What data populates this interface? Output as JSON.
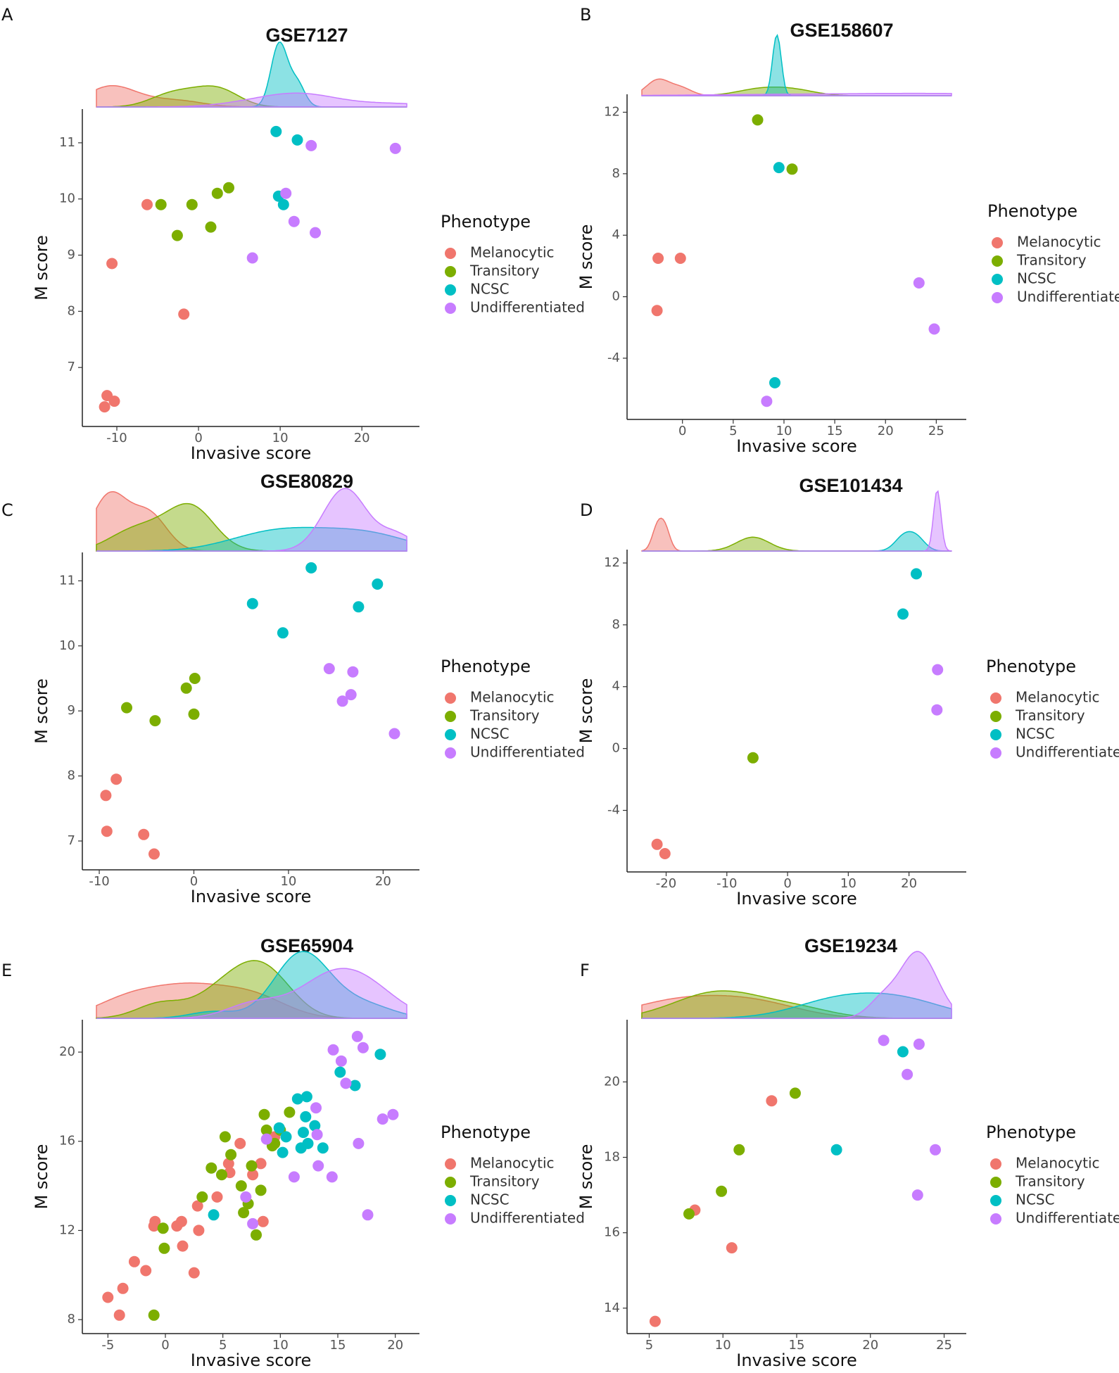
{
  "legend": {
    "title": "Phenotype",
    "items": [
      {
        "name": "Melanocytic",
        "color": "#F0766D"
      },
      {
        "name": "Transitory",
        "color": "#7CAE00"
      },
      {
        "name": "NCSC",
        "color": "#00BFC4"
      },
      {
        "name": "Undifferentiated",
        "color": "#C77CFF"
      }
    ]
  },
  "chart_data": [
    {
      "panel": "A",
      "title": "GSE7127",
      "type": "scatter",
      "xlabel": "Invasive score",
      "ylabel": "M score",
      "xlim": [
        -12.5,
        25.5
      ],
      "ylim": [
        6.0,
        11.5
      ],
      "xticks": [
        -10,
        0,
        10,
        20
      ],
      "yticks": [
        7,
        8,
        9,
        10,
        11
      ],
      "series": [
        {
          "name": "Melanocytic",
          "points": [
            [
              -11.5,
              6.3
            ],
            [
              -10.3,
              6.4
            ],
            [
              -11.2,
              6.5
            ],
            [
              -10.6,
              8.85
            ],
            [
              -6.3,
              9.9
            ],
            [
              -1.8,
              7.95
            ]
          ]
        },
        {
          "name": "Transitory",
          "points": [
            [
              -4.6,
              9.9
            ],
            [
              -2.6,
              9.35
            ],
            [
              -0.8,
              9.9
            ],
            [
              1.5,
              9.5
            ],
            [
              2.3,
              10.1
            ],
            [
              3.7,
              10.2
            ]
          ]
        },
        {
          "name": "NCSC",
          "points": [
            [
              9.5,
              11.2
            ],
            [
              12.1,
              11.05
            ],
            [
              9.8,
              10.05
            ],
            [
              10.4,
              9.9
            ]
          ]
        },
        {
          "name": "Undifferentiated",
          "points": [
            [
              6.6,
              8.95
            ],
            [
              10.7,
              10.1
            ],
            [
              11.7,
              9.6
            ],
            [
              13.8,
              10.95
            ],
            [
              14.3,
              9.4
            ],
            [
              24.1,
              10.9
            ]
          ]
        }
      ]
    },
    {
      "panel": "B",
      "title": "GSE158607",
      "type": "scatter",
      "xlabel": "Invasive score",
      "ylabel": "M score",
      "xlim": [
        -4,
        26.5
      ],
      "ylim": [
        -7.8,
        12.8
      ],
      "xticks": [
        0,
        5,
        10,
        15,
        20,
        25
      ],
      "yticks": [
        -4,
        0,
        4,
        8,
        12
      ],
      "series": [
        {
          "name": "Melanocytic",
          "points": [
            [
              -2.4,
              2.5
            ],
            [
              -0.2,
              2.5
            ],
            [
              -2.5,
              -0.9
            ]
          ]
        },
        {
          "name": "Transitory",
          "points": [
            [
              7.4,
              11.5
            ],
            [
              10.8,
              8.3
            ]
          ]
        },
        {
          "name": "NCSC",
          "points": [
            [
              9.5,
              8.4
            ],
            [
              9.1,
              -5.6
            ]
          ]
        },
        {
          "name": "Undifferentiated",
          "points": [
            [
              23.3,
              0.9
            ],
            [
              24.8,
              -2.1
            ],
            [
              8.3,
              -6.8
            ]
          ]
        }
      ]
    },
    {
      "panel": "C",
      "title": "GSE80829",
      "type": "scatter",
      "xlabel": "Invasive score",
      "ylabel": "M score",
      "xlim": [
        -10.3,
        22.5
      ],
      "ylim": [
        6.6,
        11.35
      ],
      "xticks": [
        -10,
        0,
        10,
        20
      ],
      "yticks": [
        7,
        8,
        9,
        10,
        11
      ],
      "series": [
        {
          "name": "Melanocytic",
          "points": [
            [
              -9.3,
              7.7
            ],
            [
              -8.2,
              7.95
            ],
            [
              -9.2,
              7.15
            ],
            [
              -5.3,
              7.1
            ],
            [
              -4.2,
              6.8
            ]
          ]
        },
        {
          "name": "Transitory",
          "points": [
            [
              -7.1,
              9.05
            ],
            [
              -4.1,
              8.85
            ],
            [
              -0.8,
              9.35
            ],
            [
              0.1,
              9.5
            ],
            [
              0.0,
              8.95
            ]
          ]
        },
        {
          "name": "NCSC",
          "points": [
            [
              6.2,
              10.65
            ],
            [
              9.4,
              10.2
            ],
            [
              12.4,
              11.2
            ],
            [
              17.4,
              10.6
            ],
            [
              19.4,
              10.95
            ]
          ]
        },
        {
          "name": "Undifferentiated",
          "points": [
            [
              14.3,
              9.65
            ],
            [
              16.8,
              9.6
            ],
            [
              16.6,
              9.25
            ],
            [
              15.7,
              9.15
            ],
            [
              21.2,
              8.65
            ]
          ]
        }
      ]
    },
    {
      "panel": "D",
      "title": "GSE101434",
      "type": "scatter",
      "xlabel": "Invasive score",
      "ylabel": "M score",
      "xlim": [
        -24,
        27
      ],
      "ylim": [
        -7.8,
        12.5
      ],
      "xticks": [
        -20,
        -10,
        0,
        10,
        20
      ],
      "yticks": [
        -4,
        0,
        4,
        8,
        12
      ],
      "series": [
        {
          "name": "Melanocytic",
          "points": [
            [
              -21.5,
              -6.2
            ],
            [
              -20.2,
              -6.8
            ]
          ]
        },
        {
          "name": "Transitory",
          "points": [
            [
              -5.7,
              -0.6
            ]
          ]
        },
        {
          "name": "NCSC",
          "points": [
            [
              19.0,
              8.7
            ],
            [
              21.2,
              11.3
            ]
          ]
        },
        {
          "name": "Undifferentiated",
          "points": [
            [
              24.7,
              5.1
            ],
            [
              24.6,
              2.5
            ]
          ]
        }
      ]
    },
    {
      "panel": "E",
      "title": "GSE65904",
      "type": "scatter",
      "xlabel": "Invasive score",
      "ylabel": "M score",
      "xlim": [
        -6,
        21
      ],
      "ylim": [
        7.5,
        21.2
      ],
      "xticks": [
        -5,
        0,
        5,
        10,
        15,
        20
      ],
      "yticks": [
        8,
        12,
        16,
        20
      ],
      "series": [
        {
          "name": "Melanocytic",
          "points": [
            [
              -5.0,
              9.0
            ],
            [
              -4.0,
              8.2
            ],
            [
              -3.7,
              9.4
            ],
            [
              -2.7,
              10.6
            ],
            [
              -1.7,
              10.2
            ],
            [
              -1.0,
              12.2
            ],
            [
              -0.9,
              12.4
            ],
            [
              1.0,
              12.2
            ],
            [
              1.4,
              12.4
            ],
            [
              1.5,
              11.3
            ],
            [
              2.5,
              10.1
            ],
            [
              2.8,
              13.1
            ],
            [
              2.9,
              12.0
            ],
            [
              4.5,
              13.5
            ],
            [
              5.5,
              15.0
            ],
            [
              5.6,
              14.6
            ],
            [
              6.5,
              15.9
            ],
            [
              7.6,
              14.5
            ],
            [
              8.3,
              15.0
            ],
            [
              8.5,
              12.4
            ],
            [
              9.5,
              16.2
            ]
          ]
        },
        {
          "name": "Transitory",
          "points": [
            [
              -0.2,
              12.1
            ],
            [
              -0.1,
              11.2
            ],
            [
              -1.0,
              8.2
            ],
            [
              3.2,
              13.5
            ],
            [
              4.0,
              14.8
            ],
            [
              4.9,
              14.5
            ],
            [
              5.2,
              16.2
            ],
            [
              5.7,
              15.4
            ],
            [
              6.6,
              14.0
            ],
            [
              6.8,
              12.8
            ],
            [
              7.2,
              13.2
            ],
            [
              7.5,
              14.9
            ],
            [
              7.9,
              11.8
            ],
            [
              8.3,
              13.8
            ],
            [
              8.6,
              17.2
            ],
            [
              8.8,
              16.5
            ],
            [
              9.3,
              15.8
            ],
            [
              9.5,
              15.9
            ],
            [
              10.0,
              16.5
            ],
            [
              10.8,
              17.3
            ]
          ]
        },
        {
          "name": "NCSC",
          "points": [
            [
              4.2,
              12.7
            ],
            [
              9.9,
              16.6
            ],
            [
              10.2,
              15.5
            ],
            [
              10.5,
              16.2
            ],
            [
              11.5,
              17.9
            ],
            [
              12.0,
              16.4
            ],
            [
              12.2,
              17.1
            ],
            [
              12.3,
              18.0
            ],
            [
              11.8,
              15.7
            ],
            [
              12.4,
              15.9
            ],
            [
              13.0,
              16.7
            ],
            [
              13.7,
              15.7
            ],
            [
              15.2,
              19.1
            ],
            [
              16.5,
              18.5
            ],
            [
              18.7,
              19.9
            ]
          ]
        },
        {
          "name": "Undifferentiated",
          "points": [
            [
              7.0,
              13.5
            ],
            [
              7.6,
              12.3
            ],
            [
              8.8,
              16.1
            ],
            [
              11.2,
              14.4
            ],
            [
              13.1,
              17.5
            ],
            [
              13.2,
              16.3
            ],
            [
              13.3,
              14.9
            ],
            [
              14.5,
              14.4
            ],
            [
              14.6,
              20.1
            ],
            [
              15.3,
              19.6
            ],
            [
              15.7,
              18.6
            ],
            [
              16.7,
              20.7
            ],
            [
              16.8,
              15.9
            ],
            [
              17.2,
              20.2
            ],
            [
              17.6,
              12.7
            ],
            [
              18.9,
              17.0
            ],
            [
              19.8,
              17.2
            ]
          ]
        }
      ]
    },
    {
      "panel": "F",
      "title": "GSE19234",
      "type": "scatter",
      "xlabel": "Invasive score",
      "ylabel": "M score",
      "xlim": [
        4.5,
        25.5
      ],
      "ylim": [
        13.4,
        21.5
      ],
      "xticks": [
        5,
        10,
        15,
        20,
        25
      ],
      "yticks": [
        14,
        16,
        18,
        20
      ],
      "series": [
        {
          "name": "Melanocytic",
          "points": [
            [
              5.4,
              13.65
            ],
            [
              8.1,
              16.6
            ],
            [
              10.6,
              15.6
            ],
            [
              13.3,
              19.5
            ]
          ]
        },
        {
          "name": "Transitory",
          "points": [
            [
              7.7,
              16.5
            ],
            [
              9.9,
              17.1
            ],
            [
              11.1,
              18.2
            ],
            [
              14.9,
              19.7
            ]
          ]
        },
        {
          "name": "NCSC",
          "points": [
            [
              17.7,
              18.2
            ],
            [
              22.2,
              20.8
            ]
          ]
        },
        {
          "name": "Undifferentiated",
          "points": [
            [
              20.9,
              21.1
            ],
            [
              22.5,
              20.2
            ],
            [
              23.3,
              21.0
            ],
            [
              23.2,
              17.0
            ],
            [
              24.4,
              18.2
            ]
          ]
        }
      ]
    }
  ]
}
